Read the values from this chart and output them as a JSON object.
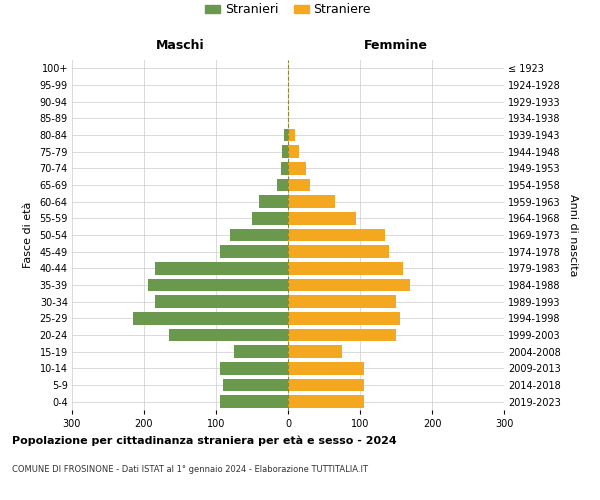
{
  "age_groups": [
    "0-4",
    "5-9",
    "10-14",
    "15-19",
    "20-24",
    "25-29",
    "30-34",
    "35-39",
    "40-44",
    "45-49",
    "50-54",
    "55-59",
    "60-64",
    "65-69",
    "70-74",
    "75-79",
    "80-84",
    "85-89",
    "90-94",
    "95-99",
    "100+"
  ],
  "birth_years": [
    "2019-2023",
    "2014-2018",
    "2009-2013",
    "2004-2008",
    "1999-2003",
    "1994-1998",
    "1989-1993",
    "1984-1988",
    "1979-1983",
    "1974-1978",
    "1969-1973",
    "1964-1968",
    "1959-1963",
    "1954-1958",
    "1949-1953",
    "1944-1948",
    "1939-1943",
    "1934-1938",
    "1929-1933",
    "1924-1928",
    "≤ 1923"
  ],
  "males": [
    95,
    90,
    95,
    75,
    165,
    215,
    185,
    195,
    185,
    95,
    80,
    50,
    40,
    15,
    10,
    8,
    5,
    0,
    0,
    0,
    0
  ],
  "females": [
    105,
    105,
    105,
    75,
    150,
    155,
    150,
    170,
    160,
    140,
    135,
    95,
    65,
    30,
    25,
    15,
    10,
    0,
    0,
    0,
    0
  ],
  "male_color": "#6a994e",
  "female_color": "#f4a820",
  "male_label": "Stranieri",
  "female_label": "Straniere",
  "title_main": "Popolazione per cittadinanza straniera per età e sesso - 2024",
  "title_sub": "COMUNE DI FROSINONE - Dati ISTAT al 1° gennaio 2024 - Elaborazione TUTTITALIA.IT",
  "xlabel_left": "Maschi",
  "xlabel_right": "Femmine",
  "ylabel_left": "Fasce di età",
  "ylabel_right": "Anni di nascita",
  "xlim": 300,
  "background_color": "#ffffff",
  "grid_color": "#cccccc"
}
